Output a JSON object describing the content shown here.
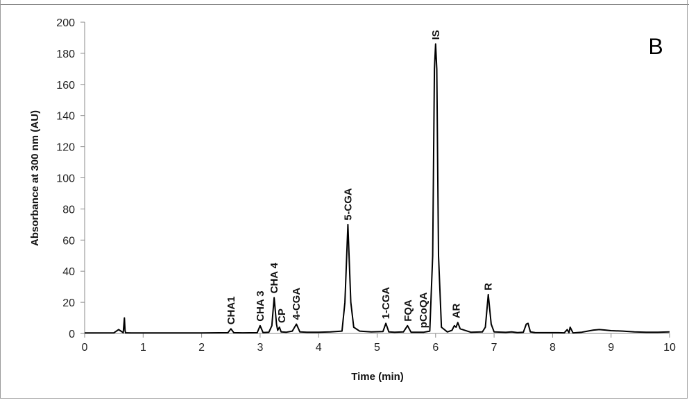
{
  "chart_data": {
    "type": "line",
    "panel_label": "B",
    "xlabel": "Time (min)",
    "ylabel": "Absorbance at 300 nm (AU)",
    "xlim": [
      0,
      10
    ],
    "ylim": [
      0,
      200
    ],
    "x_ticks": [
      "0",
      "1",
      "2",
      "3",
      "4",
      "5",
      "6",
      "7",
      "8",
      "9",
      "10"
    ],
    "y_ticks": [
      "0",
      "20",
      "40",
      "60",
      "80",
      "100",
      "120",
      "140",
      "160",
      "180",
      "200"
    ],
    "grid": false,
    "series": [
      {
        "color": "#000000",
        "x": [
          0,
          0.5,
          0.58,
          0.62,
          0.66,
          0.68,
          0.69,
          0.7,
          0.72,
          0.8,
          1.2,
          2.0,
          2.45,
          2.5,
          2.55,
          2.7,
          2.95,
          3.0,
          3.05,
          3.15,
          3.2,
          3.24,
          3.28,
          3.3,
          3.33,
          3.36,
          3.45,
          3.55,
          3.62,
          3.68,
          3.8,
          4.0,
          4.2,
          4.4,
          4.45,
          4.5,
          4.55,
          4.6,
          4.7,
          4.9,
          5.1,
          5.15,
          5.2,
          5.3,
          5.45,
          5.52,
          5.58,
          5.7,
          5.8,
          5.9,
          5.95,
          5.98,
          6.0,
          6.02,
          6.05,
          6.1,
          6.2,
          6.28,
          6.32,
          6.35,
          6.38,
          6.42,
          6.6,
          6.8,
          6.85,
          6.9,
          6.95,
          7.0,
          7.2,
          7.3,
          7.4,
          7.5,
          7.55,
          7.58,
          7.62,
          7.7,
          8.1,
          8.2,
          8.25,
          8.28,
          8.3,
          8.35,
          8.4,
          8.5,
          8.6,
          8.7,
          8.8,
          8.9,
          9.0,
          9.2,
          9.4,
          9.6,
          9.8,
          10.0
        ],
        "y": [
          0.3,
          0.4,
          2.5,
          1.5,
          0.5,
          10,
          2,
          0.4,
          0.4,
          0.3,
          0.3,
          0.3,
          0.5,
          3,
          0.5,
          0.4,
          0.5,
          5,
          0.6,
          0.8,
          5,
          23,
          6,
          2,
          4,
          1,
          0.8,
          1.5,
          6,
          1,
          0.8,
          0.8,
          1,
          1.5,
          20,
          70,
          20,
          4,
          1.5,
          1,
          1.2,
          6.5,
          1,
          0.8,
          1,
          5,
          0.8,
          0.8,
          0.8,
          1.5,
          50,
          170,
          186,
          170,
          50,
          4,
          1,
          2,
          5,
          4,
          7,
          3,
          0.8,
          1,
          4,
          25,
          6,
          1,
          0.7,
          1,
          0.6,
          0.8,
          6,
          6.5,
          1,
          0.6,
          0.5,
          0.4,
          2.5,
          0.5,
          4,
          0.3,
          0.5,
          0.8,
          1.5,
          2.2,
          2.5,
          2.2,
          1.8,
          1.5,
          1.0,
          0.8,
          0.8,
          1.0
        ]
      }
    ],
    "annotations": [
      {
        "text": "CHA1",
        "x": 2.5
      },
      {
        "text": "CHA 3",
        "x": 3.0
      },
      {
        "text": "CHA 4",
        "x": 3.24
      },
      {
        "text": "CP",
        "x": 3.37
      },
      {
        "text": "4-CGA",
        "x": 3.62
      },
      {
        "text": "5-CGA",
        "x": 4.5
      },
      {
        "text": "1-CGA",
        "x": 5.15
      },
      {
        "text": "FQA",
        "x": 5.53
      },
      {
        "text": "pCoQA",
        "x": 5.79
      },
      {
        "text": "IS",
        "x": 6.0
      },
      {
        "text": "AR",
        "x": 6.35
      },
      {
        "text": "R",
        "x": 6.9
      }
    ]
  }
}
